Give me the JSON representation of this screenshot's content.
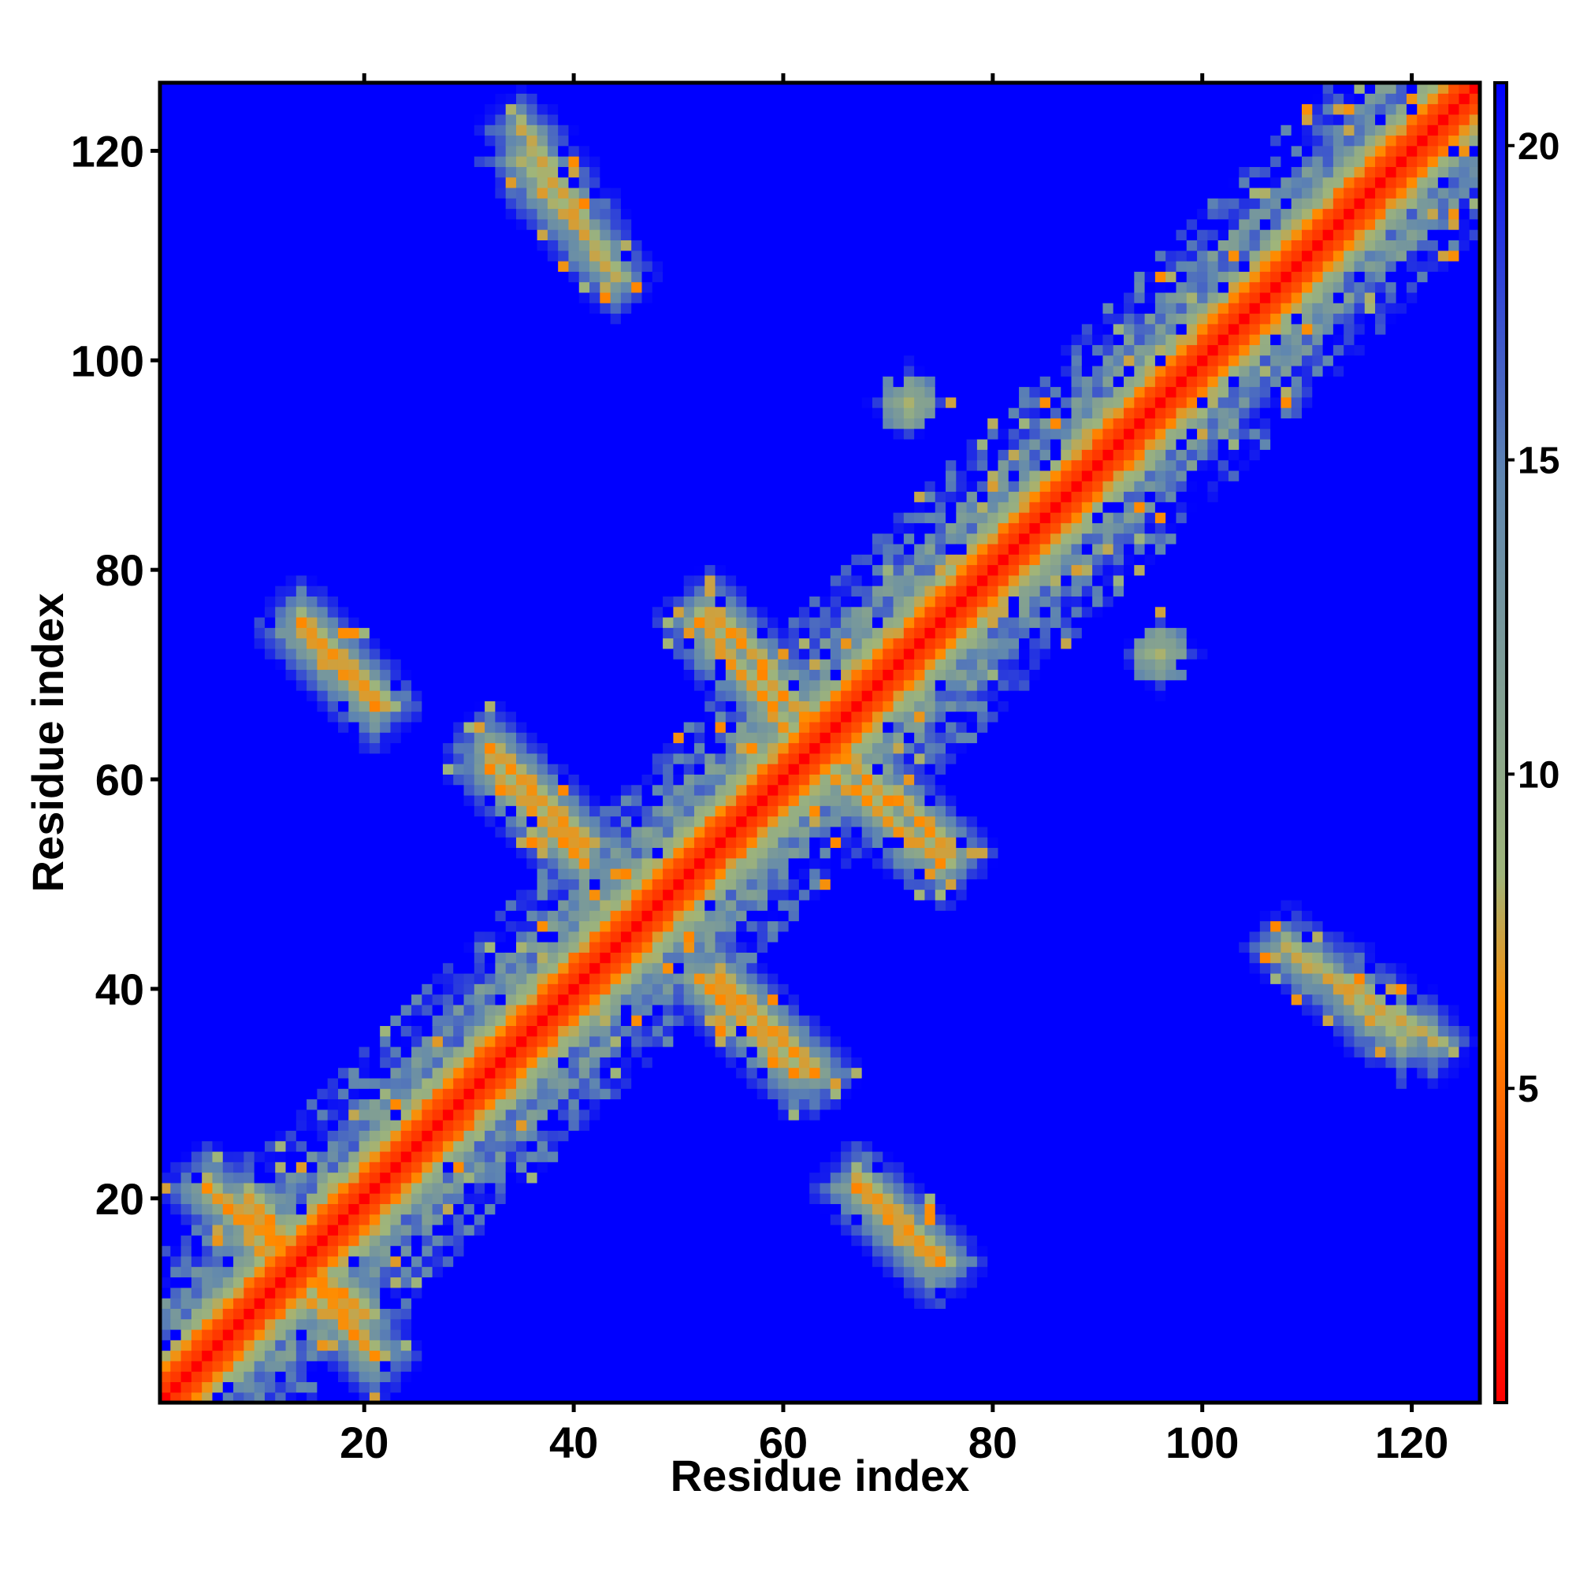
{
  "chart_data": {
    "type": "heatmap",
    "title": "",
    "xlabel": "Residue index",
    "ylabel": "Residue index",
    "n_residues": 126,
    "xlim": [
      1,
      126
    ],
    "ylim": [
      1,
      126
    ],
    "x_ticks": [
      20,
      40,
      60,
      80,
      100,
      120
    ],
    "y_ticks": [
      20,
      40,
      60,
      80,
      100,
      120
    ],
    "colorbar": {
      "ticks": [
        5,
        10,
        15,
        20
      ],
      "range": [
        0,
        21
      ],
      "colors": [
        "#ff0000",
        "#ff8c00",
        "#9fb57a",
        "#5f86b0",
        "#0000ff"
      ],
      "stops": [
        0,
        0.3,
        0.4,
        0.7,
        1.0
      ]
    },
    "value_semantics": "distance",
    "diagonal_value": 0,
    "background_value": 21,
    "features": [
      {
        "kind": "anti-diagonal",
        "i_from": 5,
        "i_to": 20,
        "j_from": 21,
        "j_to": 9,
        "value": 6
      },
      {
        "kind": "anti-diagonal",
        "i_from": 13,
        "i_to": 21,
        "j_from": 12,
        "j_to": 5,
        "value": 6
      },
      {
        "kind": "anti-diagonal",
        "i_from": 14,
        "i_to": 21,
        "j_from": 74,
        "j_to": 67,
        "value": 6
      },
      {
        "kind": "anti-diagonal",
        "i_from": 32,
        "i_to": 41,
        "j_from": 63,
        "j_to": 54,
        "value": 6
      },
      {
        "kind": "anti-diagonal",
        "i_from": 53,
        "i_to": 62,
        "j_from": 76,
        "j_to": 66,
        "value": 6
      },
      {
        "kind": "anti-diagonal",
        "i_from": 64,
        "i_to": 75,
        "j_from": 61,
        "j_to": 52,
        "value": 6
      },
      {
        "kind": "anti-diagonal",
        "i_from": 52,
        "i_to": 61,
        "j_from": 41,
        "j_to": 32,
        "value": 6
      },
      {
        "kind": "anti-diagonal",
        "i_from": 68,
        "i_to": 75,
        "j_from": 21,
        "j_to": 14,
        "value": 6
      },
      {
        "kind": "anti-diagonal",
        "i_from": 108,
        "i_to": 122,
        "j_from": 44,
        "j_to": 35,
        "value": 7
      },
      {
        "kind": "anti-diagonal",
        "i_from": 35,
        "i_to": 44,
        "j_from": 119,
        "j_to": 108,
        "value": 7
      },
      {
        "kind": "parallel-band",
        "offset": 3,
        "from": 1,
        "to": 126,
        "value": 5
      },
      {
        "kind": "blob",
        "i": 96,
        "j": 72,
        "value": 8
      },
      {
        "kind": "blob",
        "i": 72,
        "j": 96,
        "value": 8
      }
    ]
  }
}
